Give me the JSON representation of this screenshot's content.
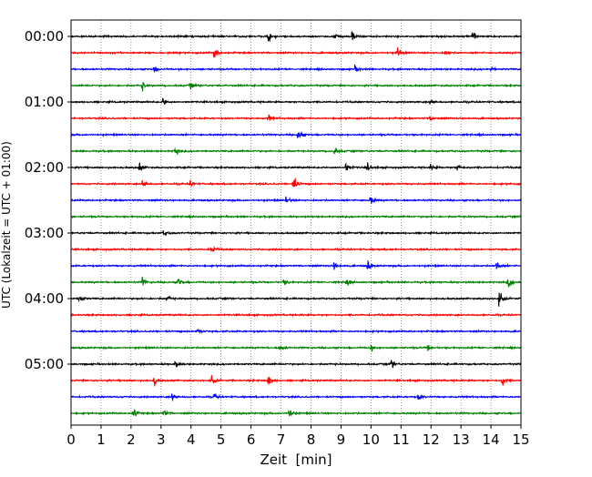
{
  "chart_data": {
    "type": "line",
    "title": "",
    "xlabel": "Zeit  [min]",
    "ylabel": "UTC (Lokalzeit = UTC + 01:00)",
    "xlim": [
      0,
      15
    ],
    "x_ticks": [
      "0",
      "1",
      "2",
      "3",
      "4",
      "5",
      "6",
      "7",
      "8",
      "9",
      "10",
      "11",
      "12",
      "13",
      "14",
      "15"
    ],
    "y_tick_labels": [
      "00:00",
      "01:00",
      "02:00",
      "03:00",
      "04:00",
      "05:00"
    ],
    "rows_per_hour": 4,
    "row_interval_min": 15,
    "grid": "vertical dotted at each minute",
    "colors": [
      "#000000",
      "#ff0000",
      "#0000ff",
      "#008000"
    ],
    "traces": [
      {
        "start": "00:00",
        "color": "#000000",
        "events": [
          [
            6.6,
            0.5
          ],
          [
            8.8,
            0.35
          ],
          [
            9.4,
            0.6
          ],
          [
            13.4,
            0.8
          ]
        ]
      },
      {
        "start": "00:15",
        "color": "#ff0000",
        "events": [
          [
            4.8,
            0.7
          ],
          [
            10.9,
            0.45
          ],
          [
            12.5,
            0.35
          ]
        ]
      },
      {
        "start": "00:30",
        "color": "#0000ff",
        "events": [
          [
            2.8,
            0.3
          ],
          [
            9.5,
            0.3
          ],
          [
            14.0,
            0.25
          ]
        ]
      },
      {
        "start": "00:45",
        "color": "#008000",
        "events": [
          [
            2.4,
            0.4
          ],
          [
            4.0,
            0.4
          ]
        ]
      },
      {
        "start": "01:00",
        "color": "#000000",
        "events": [
          [
            3.1,
            0.45
          ],
          [
            12.0,
            0.35
          ]
        ]
      },
      {
        "start": "01:15",
        "color": "#ff0000",
        "events": [
          [
            6.6,
            0.3
          ],
          [
            12.0,
            0.35
          ]
        ]
      },
      {
        "start": "01:30",
        "color": "#0000ff",
        "events": [
          [
            7.6,
            0.6
          ]
        ]
      },
      {
        "start": "01:45",
        "color": "#008000",
        "events": [
          [
            3.5,
            0.45
          ],
          [
            8.8,
            0.45
          ]
        ]
      },
      {
        "start": "02:00",
        "color": "#000000",
        "events": [
          [
            2.3,
            0.45
          ],
          [
            9.2,
            0.5
          ],
          [
            9.9,
            0.35
          ],
          [
            12.0,
            0.4
          ],
          [
            12.9,
            0.45
          ]
        ]
      },
      {
        "start": "02:15",
        "color": "#ff0000",
        "events": [
          [
            2.4,
            0.5
          ],
          [
            4.0,
            0.3
          ],
          [
            7.4,
            1.0
          ]
        ]
      },
      {
        "start": "02:30",
        "color": "#0000ff",
        "events": [
          [
            7.2,
            0.35
          ],
          [
            10.0,
            0.45
          ]
        ]
      },
      {
        "start": "02:45",
        "color": "#008000",
        "events": []
      },
      {
        "start": "03:00",
        "color": "#000000",
        "events": [
          [
            3.1,
            0.4
          ]
        ]
      },
      {
        "start": "03:15",
        "color": "#ff0000",
        "events": [
          [
            4.7,
            0.4
          ]
        ]
      },
      {
        "start": "03:30",
        "color": "#0000ff",
        "events": [
          [
            8.8,
            0.5
          ],
          [
            9.9,
            0.45
          ],
          [
            14.2,
            0.5
          ]
        ]
      },
      {
        "start": "03:45",
        "color": "#008000",
        "events": [
          [
            2.4,
            0.45
          ],
          [
            3.6,
            0.5
          ],
          [
            7.1,
            0.35
          ],
          [
            9.2,
            0.4
          ],
          [
            14.6,
            0.5
          ]
        ]
      },
      {
        "start": "04:00",
        "color": "#000000",
        "events": [
          [
            0.3,
            0.4
          ],
          [
            3.2,
            0.35
          ],
          [
            14.3,
            0.7
          ]
        ]
      },
      {
        "start": "04:15",
        "color": "#ff0000",
        "events": []
      },
      {
        "start": "04:30",
        "color": "#0000ff",
        "events": [
          [
            4.2,
            0.35
          ]
        ]
      },
      {
        "start": "04:45",
        "color": "#008000",
        "events": [
          [
            7.0,
            0.35
          ],
          [
            10.0,
            0.4
          ],
          [
            11.9,
            0.45
          ]
        ]
      },
      {
        "start": "05:00",
        "color": "#000000",
        "events": [
          [
            3.5,
            0.35
          ],
          [
            10.7,
            0.45
          ]
        ]
      },
      {
        "start": "05:15",
        "color": "#ff0000",
        "events": [
          [
            2.8,
            0.45
          ],
          [
            4.7,
            0.45
          ],
          [
            6.6,
            0.5
          ],
          [
            14.4,
            0.45
          ]
        ]
      },
      {
        "start": "05:30",
        "color": "#0000ff",
        "events": [
          [
            3.4,
            0.45
          ],
          [
            4.8,
            0.3
          ],
          [
            11.6,
            0.35
          ]
        ]
      },
      {
        "start": "05:45",
        "color": "#008000",
        "events": [
          [
            2.1,
            0.55
          ],
          [
            3.1,
            0.45
          ],
          [
            7.3,
            0.5
          ]
        ]
      }
    ]
  }
}
